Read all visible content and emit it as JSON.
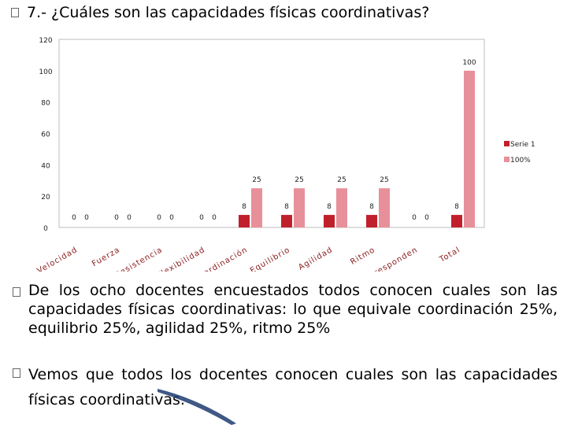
{
  "slide": {
    "title": "7.- ¿Cuáles son las capacidades físicas coordinativas?",
    "paragraphs": [
      "De los ocho docentes encuestados todos conocen cuales son las capacidades físicas coordinativas: lo que equivale coordinación 25%, equilibrio 25%, agilidad 25%, ritmo 25%",
      "Vemos que todos los docentes conocen cuales son las capacidades físicas coordinativas."
    ]
  },
  "chart_data": {
    "type": "bar",
    "categories": [
      "Velocidad",
      "Fuerza",
      "Resistencia",
      "Flexibilidad",
      "Coordinación",
      "Equilibrio",
      "Agilidad",
      "Ritmo",
      "No responden",
      "Total"
    ],
    "series": [
      {
        "name": "Serie 1",
        "color": "#c0202b",
        "values": [
          0,
          0,
          0,
          0,
          8,
          8,
          8,
          8,
          0,
          8
        ]
      },
      {
        "name": "100%",
        "color": "#e8909a",
        "values": [
          0,
          0,
          0,
          0,
          25,
          25,
          25,
          25,
          0,
          100
        ]
      }
    ],
    "ylim": [
      0,
      120
    ],
    "yticks": [
      "0",
      "20",
      "40",
      "60",
      "80",
      "100",
      "120"
    ],
    "grid": false,
    "legend": "right",
    "title": "",
    "xlabel": "",
    "ylabel": ""
  }
}
